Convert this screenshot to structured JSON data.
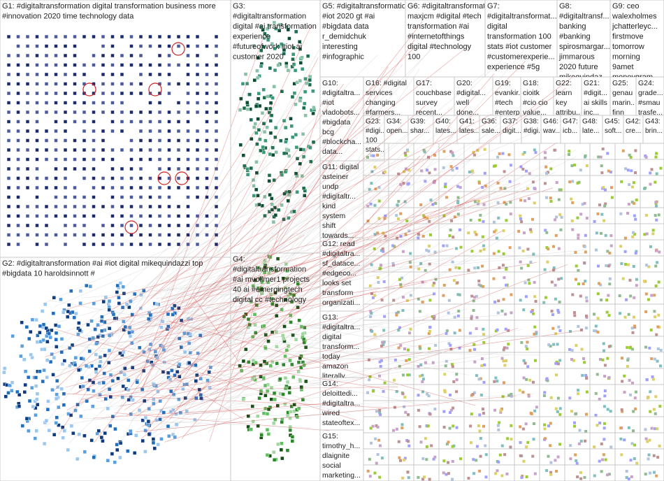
{
  "groups": [
    {
      "lines": [
        "G1: #digitaltransformation digital transformation business more",
        "#innovation 2020 time technology data"
      ]
    },
    {
      "lines": [
        "G2: #digitaltransformation #ai #iot digital mikequindazzi top",
        "#bigdata 10 haroldsinnott #"
      ]
    },
    {
      "lines": [
        "G3:",
        "#digitaltransformation",
        "digital #ai transformation",
        "experience",
        "#futureofwork #iot ai",
        "customer 2020"
      ]
    },
    {
      "lines": [
        "G4:",
        "#digitaltransformation",
        "#ai mvollmer1 projects",
        "40 ai #emergingtech",
        "digital cc #technology"
      ]
    },
    {
      "lines": [
        "G5: #digitaltransformation",
        "#iot 2020 gt #ai",
        "#bigdata data",
        "r_demidchuk",
        "interesting",
        "#infographic"
      ]
    },
    {
      "lines": [
        "G6: #digitaltransformation",
        "maxjcm #digital #tech",
        "transformation #ai",
        "#internetofthings",
        "digital #technology",
        "100"
      ]
    },
    {
      "lines": [
        "G7:",
        "#digitaltransformat...",
        "digital",
        "transformation 100",
        "stats #iot customer",
        "#customerexperie...",
        "experience #5g"
      ]
    },
    {
      "lines": [
        "G8:",
        "#digitaltransf...",
        "banking",
        "#banking",
        "spirosmargar...",
        "jimmarous",
        "2020 future",
        "mikequindaz..."
      ]
    },
    {
      "lines": [
        "G9: ceo",
        "walexholmes",
        "jchatterleyc...",
        "firstmove",
        "tomorrow",
        "morning",
        "9amet",
        "moneygram..."
      ]
    },
    {
      "lines": [
        "G10:",
        "#digitaltra...",
        "#iot",
        "vladobots...",
        "#bigdata",
        "bcg",
        "#blockcha...",
        "data..."
      ]
    },
    {
      "lines": [
        "G16: #digital",
        "services",
        "changing",
        "#farmers..."
      ]
    },
    {
      "lines": [
        "G17:",
        "couchbase",
        "survey",
        "recent..."
      ]
    },
    {
      "lines": [
        "G20:",
        "#digital...",
        "well",
        "done..."
      ]
    },
    {
      "lines": [
        "G19:",
        "evankir...",
        "#tech",
        "#enterp..."
      ]
    },
    {
      "lines": [
        "G18:",
        "cioitk",
        "#cio cio",
        "value..."
      ]
    },
    {
      "lines": [
        "G22:",
        "learn",
        "key",
        "attribu..."
      ]
    },
    {
      "lines": [
        "G21:",
        "#digit...",
        "ai skills",
        "inc..."
      ]
    },
    {
      "lines": [
        "G25:",
        "genau",
        "marin...",
        "finn"
      ]
    },
    {
      "lines": [
        "G24:",
        "grade...",
        "#smau",
        "trasfe..."
      ]
    },
    {
      "lines": [
        "G11: digital",
        "asteiner",
        "undp",
        "#digitaltr...",
        "kind",
        "system",
        "shift",
        "towards..."
      ]
    },
    {
      "lines": [
        "G12: read",
        "#digitaltra...",
        "sf_datace...",
        "#edgeco...",
        "looks set",
        "transform",
        "organizati..."
      ]
    },
    {
      "lines": [
        "G13:",
        "#digitaltra...",
        "digital",
        "transform...",
        "today",
        "amazon",
        "literally..."
      ]
    },
    {
      "lines": [
        "G14:",
        "deloittedi...",
        "#digitaltra...",
        "wired",
        "stateoftex..."
      ]
    },
    {
      "lines": [
        "G15:",
        "timothy_h...",
        "dlaignite",
        "social",
        "marketing..."
      ]
    },
    {
      "lines": [
        "G23:",
        "#digi...",
        "100",
        "stats..."
      ]
    },
    {
      "lines": [
        "G34:",
        "open..."
      ]
    },
    {
      "lines": [
        "G39:",
        "shar..."
      ]
    },
    {
      "lines": [
        "G40:",
        "lates..."
      ]
    },
    {
      "lines": [
        "G41:",
        "lates..."
      ]
    },
    {
      "lines": [
        "G36:",
        "sale..."
      ]
    },
    {
      "lines": [
        "G37:",
        "digit..."
      ]
    },
    {
      "lines": [
        "G38:",
        "#digi..."
      ]
    },
    {
      "lines": [
        "G46:",
        "wav..."
      ]
    },
    {
      "lines": [
        "G47:",
        "icb..."
      ]
    },
    {
      "lines": [
        "G48:",
        "late..."
      ]
    },
    {
      "lines": [
        "G45:",
        "soft..."
      ]
    },
    {
      "lines": [
        "G42:",
        "cre..."
      ]
    },
    {
      "lines": [
        "G43:",
        "brin..."
      ]
    }
  ]
}
